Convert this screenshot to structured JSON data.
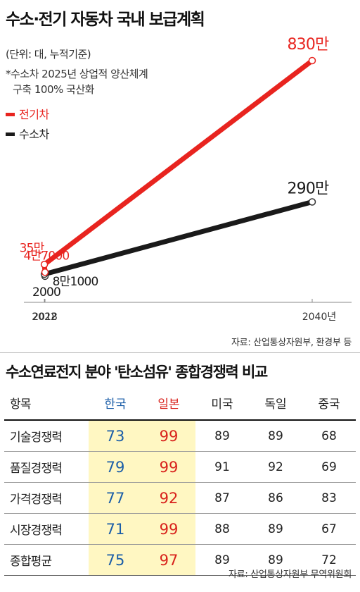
{
  "line_chart": {
    "title": "수소·전기 자동차 국내 보급계획",
    "unit_note": "(단위: 대, 누적기준)",
    "footnote_line1": "*수소차 2025년 상업적 양산체계",
    "footnote_line2": "구축 100% 국산화",
    "source": "자료: 산업통상자원부, 환경부 등",
    "colors": {
      "electric": "#e8241f",
      "hydrogen": "#1a1a1a"
    }
  },
  "table": {
    "title": "수소연료전지 분야 '탄소섬유' 종합경쟁력 비교",
    "header_label": "항목",
    "countries": [
      "한국",
      "일본",
      "미국",
      "독일",
      "중국"
    ],
    "rows": [
      {
        "label": "기술경쟁력",
        "values": [
          "73",
          "99",
          "89",
          "89",
          "68"
        ]
      },
      {
        "label": "품질경쟁력",
        "values": [
          "79",
          "99",
          "91",
          "92",
          "69"
        ]
      },
      {
        "label": "가격경쟁력",
        "values": [
          "77",
          "92",
          "87",
          "86",
          "83"
        ]
      },
      {
        "label": "시장경쟁력",
        "values": [
          "71",
          "99",
          "88",
          "89",
          "67"
        ]
      },
      {
        "label": "종합평균",
        "values": [
          "75",
          "97",
          "89",
          "89",
          "72"
        ]
      }
    ],
    "source": "자료: 산업통상자원부 무역위원회",
    "colors": {
      "korea": "#1b5ea8",
      "japan": "#d8221c",
      "highlight": "#fff7c2"
    }
  },
  "chart_data": [
    {
      "type": "line",
      "title": "수소·전기 자동차 국내 보급계획",
      "x": [
        "2018",
        "2022",
        "2040년"
      ],
      "series": [
        {
          "name": "전기차",
          "values": [
            47000,
            350000,
            8300000
          ],
          "labels": [
            "4만7000",
            "35만",
            "830만"
          ],
          "color": "#e8241f"
        },
        {
          "name": "수소차",
          "values": [
            2000,
            81000,
            2900000
          ],
          "labels": [
            "2000",
            "8만1000",
            "290만"
          ],
          "color": "#1a1a1a"
        }
      ],
      "xlabel": "",
      "ylabel": "",
      "grid": false,
      "legend": "top-left"
    },
    {
      "type": "table",
      "title": "수소연료전지 분야 '탄소섬유' 종합경쟁력 비교",
      "columns": [
        "항목",
        "한국",
        "일본",
        "미국",
        "독일",
        "중국"
      ],
      "rows": [
        [
          "기술경쟁력",
          73,
          99,
          89,
          89,
          68
        ],
        [
          "품질경쟁력",
          79,
          99,
          91,
          92,
          69
        ],
        [
          "가격경쟁력",
          77,
          92,
          87,
          86,
          83
        ],
        [
          "시장경쟁력",
          71,
          99,
          88,
          89,
          67
        ],
        [
          "종합평균",
          75,
          97,
          89,
          89,
          72
        ]
      ]
    }
  ]
}
